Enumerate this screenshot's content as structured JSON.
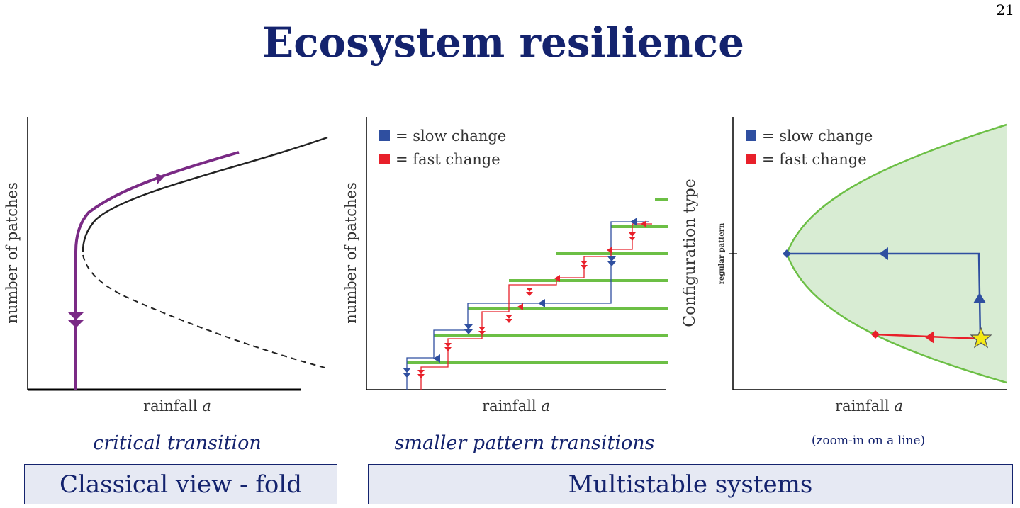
{
  "page_number": "21",
  "title": "Ecosystem resilience",
  "panels": [
    {
      "xlabel_text": "rainfall ",
      "xlabel_var": "a",
      "ylabel": "number of patches"
    },
    {
      "xlabel_text": "rainfall ",
      "xlabel_var": "a",
      "ylabel": "number of patches",
      "legend": {
        "slow": "= slow change",
        "fast": "= fast change"
      }
    },
    {
      "xlabel_text": "rainfall ",
      "xlabel_var": "a",
      "ylabel": "Configuration type",
      "ytick_label": "regular pattern",
      "legend": {
        "slow": "= slow change",
        "fast": "= fast change"
      }
    }
  ],
  "captions": {
    "left": "critical transition",
    "middle": "smaller pattern transitions",
    "right_note": "(zoom-in on a line)"
  },
  "boxes": {
    "left": "Classical view - fold",
    "right": "Multistable systems"
  },
  "colors": {
    "title": "#14236e",
    "slow": "#2f4fa0",
    "fast": "#e8202a",
    "purple": "#7a2a85",
    "green": "#6cbf45",
    "fill": "#d8ecd3"
  }
}
